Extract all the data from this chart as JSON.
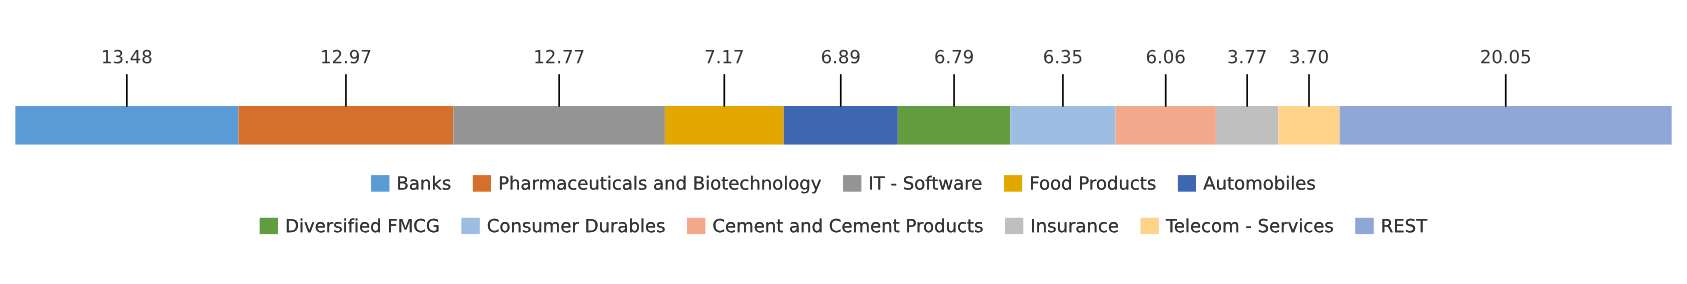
{
  "chart_data": {
    "type": "bar",
    "orientation": "horizontal",
    "stacked": true,
    "categories": [
      null
    ],
    "series": [
      {
        "name": "Banks",
        "color": "#5b9bd5",
        "values": [
          13.48
        ],
        "value_labels": [
          "13.48"
        ]
      },
      {
        "name": "Pharmaceuticals and Biotechnology",
        "color": "#d5702c",
        "values": [
          12.97
        ],
        "value_labels": [
          "12.97"
        ]
      },
      {
        "name": "IT - Software",
        "color": "#949494",
        "values": [
          12.77
        ],
        "value_labels": [
          "12.77"
        ]
      },
      {
        "name": "Food Products",
        "color": "#e3a800",
        "values": [
          7.17
        ],
        "value_labels": [
          "7.17"
        ]
      },
      {
        "name": "Automobiles",
        "color": "#3e67b1",
        "values": [
          6.89
        ],
        "value_labels": [
          "6.89"
        ]
      },
      {
        "name": "Diversified FMCG",
        "color": "#629c3e",
        "values": [
          6.79
        ],
        "value_labels": [
          "6.79"
        ]
      },
      {
        "name": "Consumer Durables",
        "color": "#9dbde2",
        "values": [
          6.35
        ],
        "value_labels": [
          "6.35"
        ]
      },
      {
        "name": "Cement and Cement Products",
        "color": "#f2a88b",
        "values": [
          6.06
        ],
        "value_labels": [
          "6.06"
        ]
      },
      {
        "name": "Insurance",
        "color": "#bfbfbf",
        "values": [
          3.77
        ],
        "value_labels": [
          "3.77"
        ]
      },
      {
        "name": "Telecom - Services",
        "color": "#ffd38a",
        "values": [
          3.7
        ],
        "value_labels": [
          "3.70"
        ]
      },
      {
        "name": "REST",
        "color": "#8fa6d6",
        "values": [
          20.05
        ],
        "value_labels": [
          "20.05"
        ]
      }
    ],
    "legend": "bottom"
  }
}
